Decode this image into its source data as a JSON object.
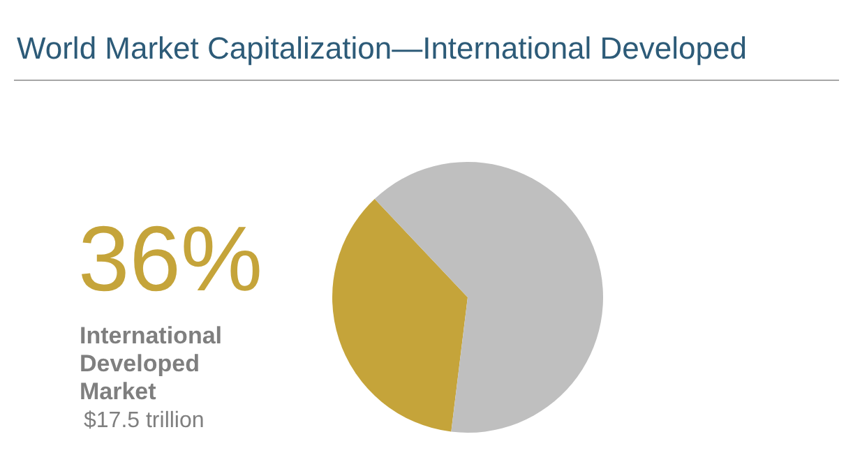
{
  "chart_data": {
    "type": "pie",
    "title": "World Market Capitalization—International Developed",
    "categories": [
      "International Developed Market",
      null
    ],
    "values": [
      36,
      64
    ],
    "colors": [
      "#c5a43a",
      "#bfbfbf"
    ],
    "value_labels": [
      "36%",
      null
    ],
    "annotations": [
      "$17.5 trillion"
    ]
  }
}
